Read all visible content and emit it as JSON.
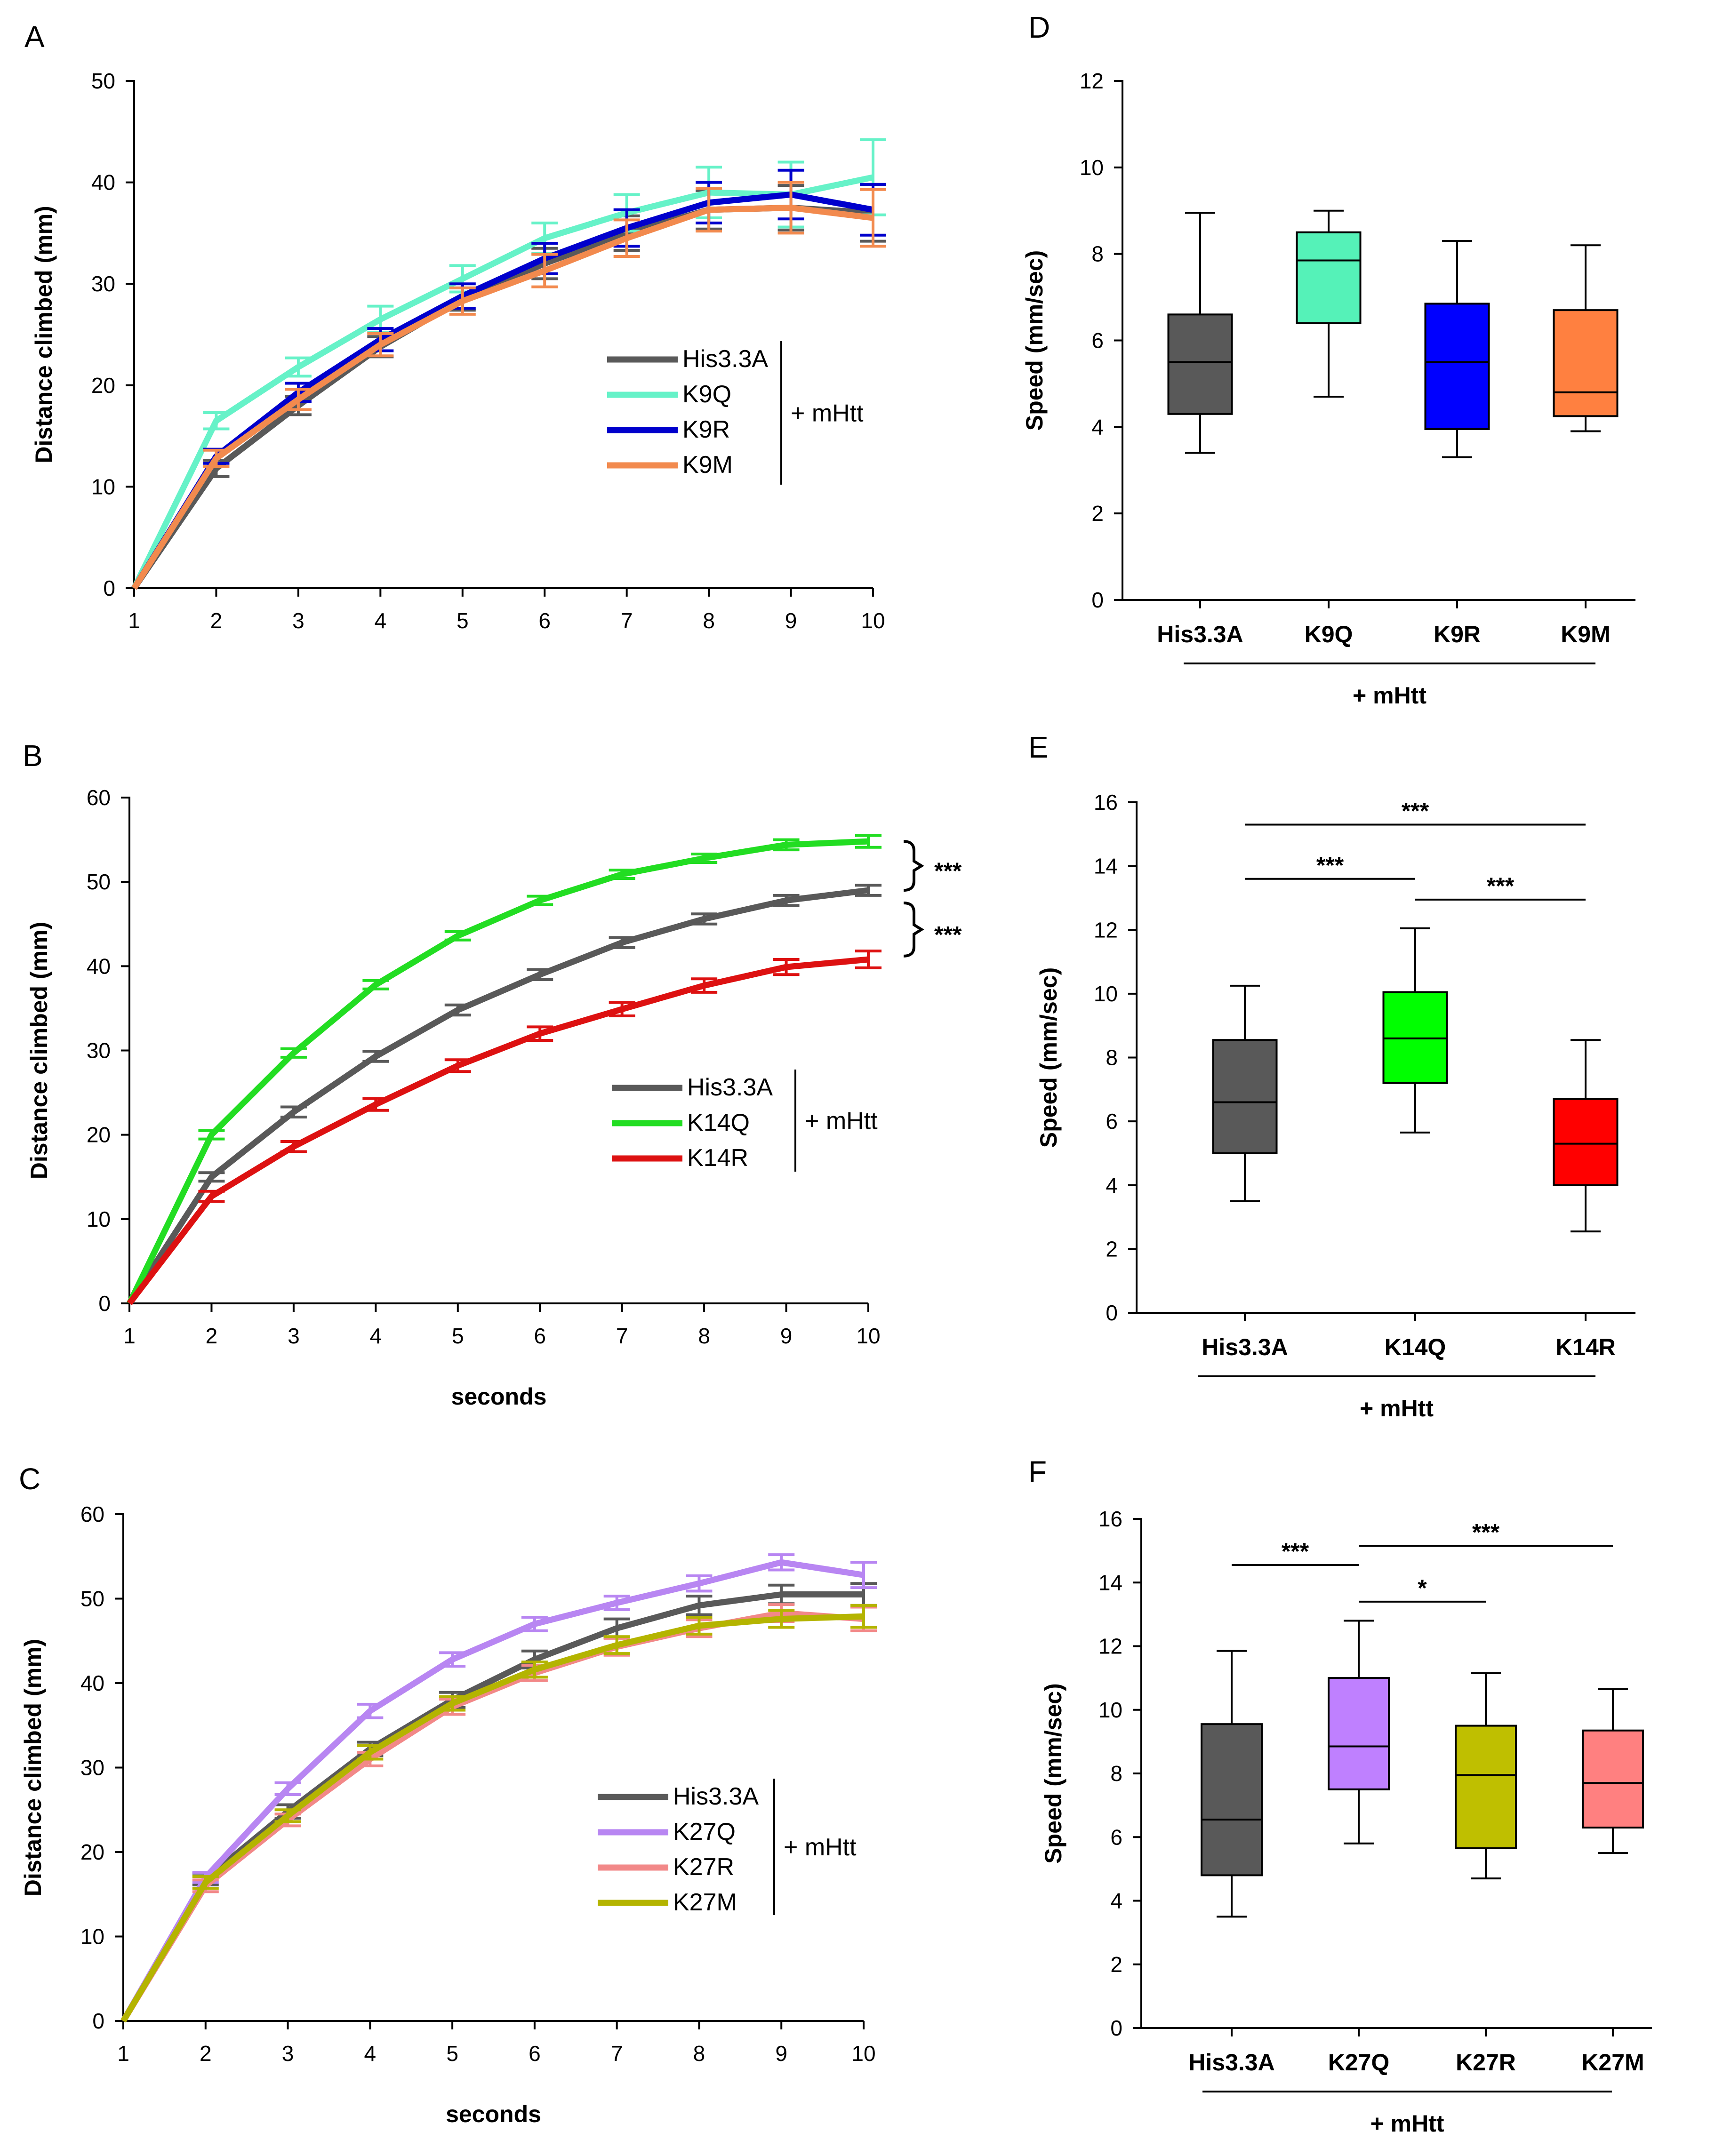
{
  "chart_data": [
    {
      "panel": "A",
      "type": "line",
      "title": "",
      "xlabel": "",
      "ylabel": "Distance climbed (mm)",
      "x": [
        1,
        2,
        3,
        4,
        5,
        6,
        7,
        8,
        9,
        10
      ],
      "xlim": [
        1,
        10
      ],
      "ylim": [
        0,
        50
      ],
      "yticks": [
        0,
        10,
        20,
        30,
        40,
        50
      ],
      "legend_suffix": "+ mHtt",
      "series": [
        {
          "name": "His3.3A",
          "color": "#595959",
          "values": [
            0,
            11.8,
            18,
            23.8,
            28.5,
            32,
            35,
            37.3,
            37.5,
            37
          ],
          "err": [
            0,
            0.8,
            0.9,
            1,
            1.1,
            1.5,
            1.7,
            1.9,
            2.2,
            2.8
          ]
        },
        {
          "name": "K9Q",
          "color": "#66F2C8",
          "values": [
            0,
            16.5,
            21.8,
            26.5,
            30.5,
            34.5,
            37,
            39,
            38.8,
            40.5
          ],
          "err": [
            0,
            0.8,
            0.9,
            1.3,
            1.3,
            1.5,
            1.8,
            2.5,
            3.2,
            3.7
          ]
        },
        {
          "name": "K9R",
          "color": "#0000CC",
          "values": [
            0,
            13,
            19.3,
            24.5,
            28.8,
            32.5,
            35.5,
            38,
            38.8,
            37.3
          ],
          "err": [
            0,
            0.7,
            0.9,
            1.1,
            1.2,
            1.5,
            1.8,
            2,
            2.4,
            2.5
          ]
        },
        {
          "name": "K9M",
          "color": "#F28A4E",
          "values": [
            0,
            12.8,
            18.6,
            24,
            28.3,
            31.3,
            34.5,
            37.3,
            37.5,
            36.5
          ],
          "err": [
            0,
            0.8,
            1,
            1.1,
            1.3,
            1.6,
            1.8,
            2.1,
            2.5,
            2.8
          ]
        }
      ]
    },
    {
      "panel": "B",
      "type": "line",
      "title": "",
      "xlabel": "seconds",
      "ylabel": "Distance climbed (mm)",
      "x": [
        1,
        2,
        3,
        4,
        5,
        6,
        7,
        8,
        9,
        10
      ],
      "xlim": [
        1,
        10
      ],
      "ylim": [
        0,
        60
      ],
      "yticks": [
        0,
        10,
        20,
        30,
        40,
        50,
        60
      ],
      "legend_suffix": "+ mHtt",
      "annotations": [
        "***",
        "***"
      ],
      "series": [
        {
          "name": "His3.3A",
          "color": "#595959",
          "values": [
            0,
            15,
            22.7,
            29.3,
            34.8,
            39,
            42.8,
            45.6,
            47.8,
            49
          ],
          "err": [
            0,
            0.5,
            0.6,
            0.6,
            0.6,
            0.6,
            0.6,
            0.6,
            0.6,
            0.6
          ]
        },
        {
          "name": "K14Q",
          "color": "#22DD22",
          "values": [
            0,
            20,
            29.7,
            37.8,
            43.6,
            47.8,
            50.9,
            52.8,
            54.4,
            54.8
          ],
          "err": [
            0,
            0.5,
            0.5,
            0.5,
            0.5,
            0.5,
            0.5,
            0.5,
            0.6,
            0.7
          ]
        },
        {
          "name": "K14R",
          "color": "#DD1111",
          "values": [
            0,
            12.7,
            18.6,
            23.6,
            28.2,
            32,
            34.9,
            37.7,
            39.9,
            40.8
          ],
          "err": [
            0,
            0.6,
            0.6,
            0.7,
            0.7,
            0.8,
            0.8,
            0.8,
            0.9,
            1
          ]
        }
      ]
    },
    {
      "panel": "C",
      "type": "line",
      "title": "",
      "xlabel": "seconds",
      "ylabel": "Distance climbed (mm)",
      "x": [
        1,
        2,
        3,
        4,
        5,
        6,
        7,
        8,
        9,
        10
      ],
      "xlim": [
        1,
        10
      ],
      "ylim": [
        0,
        60
      ],
      "yticks": [
        0,
        10,
        20,
        30,
        40,
        50,
        60
      ],
      "legend_suffix": "+ mHtt",
      "series": [
        {
          "name": "His3.3A",
          "color": "#595959",
          "values": [
            0,
            16.8,
            24.8,
            32.2,
            38,
            42.8,
            46.5,
            49.2,
            50.5,
            50.5
          ],
          "err": [
            0,
            0.7,
            0.8,
            0.8,
            0.9,
            1,
            1.1,
            1.1,
            1.1,
            1.3
          ]
        },
        {
          "name": "K27Q",
          "color": "#B886F2",
          "values": [
            0,
            17,
            27.5,
            36.7,
            42.8,
            47,
            49.5,
            51.8,
            54.3,
            52.8
          ],
          "err": [
            0,
            0.6,
            0.7,
            0.8,
            0.8,
            0.8,
            0.8,
            0.9,
            0.9,
            1.5
          ]
        },
        {
          "name": "K27R",
          "color": "#F28888",
          "values": [
            0,
            16,
            23.8,
            31,
            37.2,
            41.2,
            44.3,
            46.5,
            48.3,
            47.6
          ],
          "err": [
            0,
            0.7,
            0.7,
            0.8,
            0.9,
            0.9,
            1,
            1,
            1,
            1.4
          ]
        },
        {
          "name": "K27M",
          "color": "#B4B400",
          "values": [
            0,
            16.4,
            24.3,
            31.8,
            37.6,
            41.6,
            44.5,
            46.8,
            47.6,
            47.9
          ],
          "err": [
            0,
            0.7,
            0.7,
            0.8,
            0.8,
            0.9,
            1,
            1,
            1,
            1.3
          ]
        }
      ]
    },
    {
      "panel": "D",
      "type": "box",
      "title": "",
      "xlabel": "+ mHtt",
      "ylabel": "Speed (mm/sec)",
      "ylim": [
        0,
        12
      ],
      "yticks": [
        0,
        2,
        4,
        6,
        8,
        10,
        12
      ],
      "categories": [
        "His3.3A",
        "K9Q",
        "K9R",
        "K9M"
      ],
      "boxes": [
        {
          "name": "His3.3A",
          "color": "#595959",
          "min": 3.4,
          "q1": 4.3,
          "median": 5.5,
          "q3": 6.6,
          "max": 8.95
        },
        {
          "name": "K9Q",
          "color": "#55F2B8",
          "min": 4.7,
          "q1": 6.4,
          "median": 7.85,
          "q3": 8.5,
          "max": 9.0
        },
        {
          "name": "K9R",
          "color": "#0000FF",
          "min": 3.3,
          "q1": 3.95,
          "median": 5.5,
          "q3": 6.85,
          "max": 8.3
        },
        {
          "name": "K9M",
          "color": "#FF8040",
          "min": 3.9,
          "q1": 4.25,
          "median": 4.8,
          "q3": 6.7,
          "max": 8.2
        }
      ],
      "significance": []
    },
    {
      "panel": "E",
      "type": "box",
      "title": "",
      "xlabel": "+ mHtt",
      "ylabel": "Speed (mm/sec)",
      "ylim": [
        0,
        16
      ],
      "yticks": [
        0,
        2,
        4,
        6,
        8,
        10,
        12,
        14,
        16
      ],
      "categories": [
        "His3.3A",
        "K14Q",
        "K14R"
      ],
      "boxes": [
        {
          "name": "His3.3A",
          "color": "#595959",
          "min": 3.5,
          "q1": 5.0,
          "median": 6.6,
          "q3": 8.55,
          "max": 10.25
        },
        {
          "name": "K14Q",
          "color": "#00FF00",
          "min": 5.65,
          "q1": 7.2,
          "median": 8.6,
          "q3": 10.05,
          "max": 12.05
        },
        {
          "name": "K14R",
          "color": "#FF0000",
          "min": 2.55,
          "q1": 4.0,
          "median": 5.3,
          "q3": 6.7,
          "max": 8.55
        }
      ],
      "significance": [
        {
          "from": 0,
          "to": 2,
          "label": "***",
          "y": 15.3
        },
        {
          "from": 0,
          "to": 1,
          "label": "***",
          "y": 13.6
        },
        {
          "from": 1,
          "to": 2,
          "label": "***",
          "y": 12.95
        }
      ]
    },
    {
      "panel": "F",
      "type": "box",
      "title": "",
      "xlabel": "+ mHtt",
      "ylabel": "Speed (mm/sec)",
      "ylim": [
        0,
        16
      ],
      "yticks": [
        0,
        2,
        4,
        6,
        8,
        10,
        12,
        14,
        16
      ],
      "categories": [
        "His3.3A",
        "K27Q",
        "K27R",
        "K27M"
      ],
      "boxes": [
        {
          "name": "His3.3A",
          "color": "#595959",
          "min": 3.5,
          "q1": 4.8,
          "median": 6.55,
          "q3": 9.55,
          "max": 11.85
        },
        {
          "name": "K27Q",
          "color": "#BF80FF",
          "min": 5.8,
          "q1": 7.5,
          "median": 8.85,
          "q3": 11.0,
          "max": 12.8
        },
        {
          "name": "K27R",
          "color": "#BFBF00",
          "min": 4.7,
          "q1": 5.65,
          "median": 7.95,
          "q3": 9.5,
          "max": 11.15
        },
        {
          "name": "K27M",
          "color": "#FF8080",
          "min": 5.5,
          "q1": 6.3,
          "median": 7.7,
          "q3": 9.35,
          "max": 10.65
        }
      ],
      "significance": [
        {
          "from": 0,
          "to": 1,
          "label": "***",
          "y": 14.55
        },
        {
          "from": 1,
          "to": 3,
          "label": "***",
          "y": 15.15
        },
        {
          "from": 1,
          "to": 2,
          "label": "*",
          "y": 13.4
        }
      ]
    }
  ]
}
